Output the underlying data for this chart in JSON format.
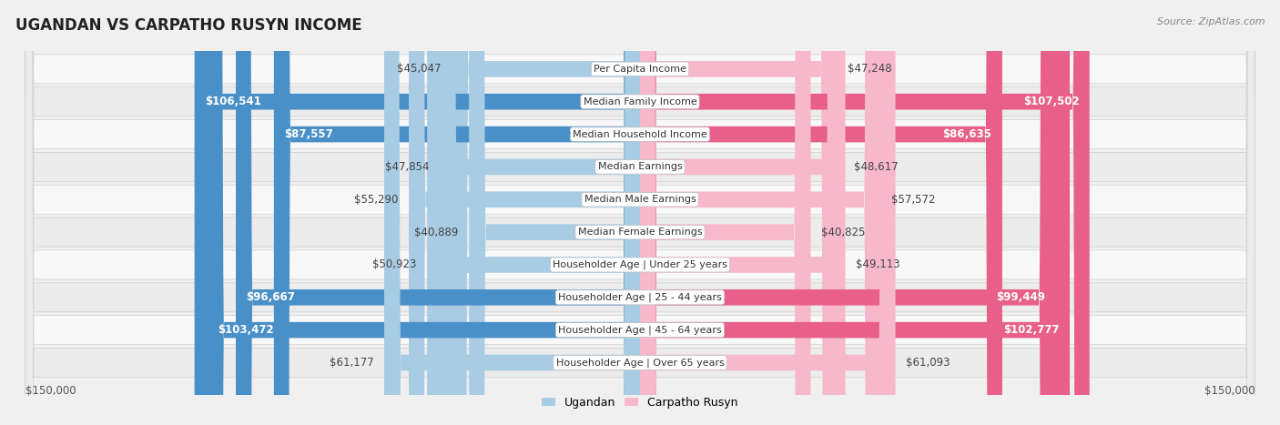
{
  "title": "UGANDAN VS CARPATHO RUSYN INCOME",
  "source": "Source: ZipAtlas.com",
  "categories": [
    "Per Capita Income",
    "Median Family Income",
    "Median Household Income",
    "Median Earnings",
    "Median Male Earnings",
    "Median Female Earnings",
    "Householder Age | Under 25 years",
    "Householder Age | 25 - 44 years",
    "Householder Age | 45 - 64 years",
    "Householder Age | Over 65 years"
  ],
  "ugandan": [
    45047,
    106541,
    87557,
    47854,
    55290,
    40889,
    50923,
    96667,
    103472,
    61177
  ],
  "carpatho_rusyn": [
    47248,
    107502,
    86635,
    48617,
    57572,
    40825,
    49113,
    99449,
    102777,
    61093
  ],
  "ugandan_labels": [
    "$45,047",
    "$106,541",
    "$87,557",
    "$47,854",
    "$55,290",
    "$40,889",
    "$50,923",
    "$96,667",
    "$103,472",
    "$61,177"
  ],
  "carpatho_rusyn_labels": [
    "$47,248",
    "$107,502",
    "$86,635",
    "$48,617",
    "$57,572",
    "$40,825",
    "$49,113",
    "$99,449",
    "$102,777",
    "$61,093"
  ],
  "ugandan_color_light": "#a8cce4",
  "ugandan_color_dark": "#4a90c8",
  "carpatho_rusyn_color_light": "#f7b8cc",
  "carpatho_rusyn_color_dark": "#e8608a",
  "max_value": 150000,
  "bg_color": "#f0f0f0",
  "row_bg_even": "#f8f8f8",
  "row_bg_odd": "#ececec",
  "threshold": 70000,
  "label_fontsize": 8.5,
  "cat_fontsize": 8.0
}
